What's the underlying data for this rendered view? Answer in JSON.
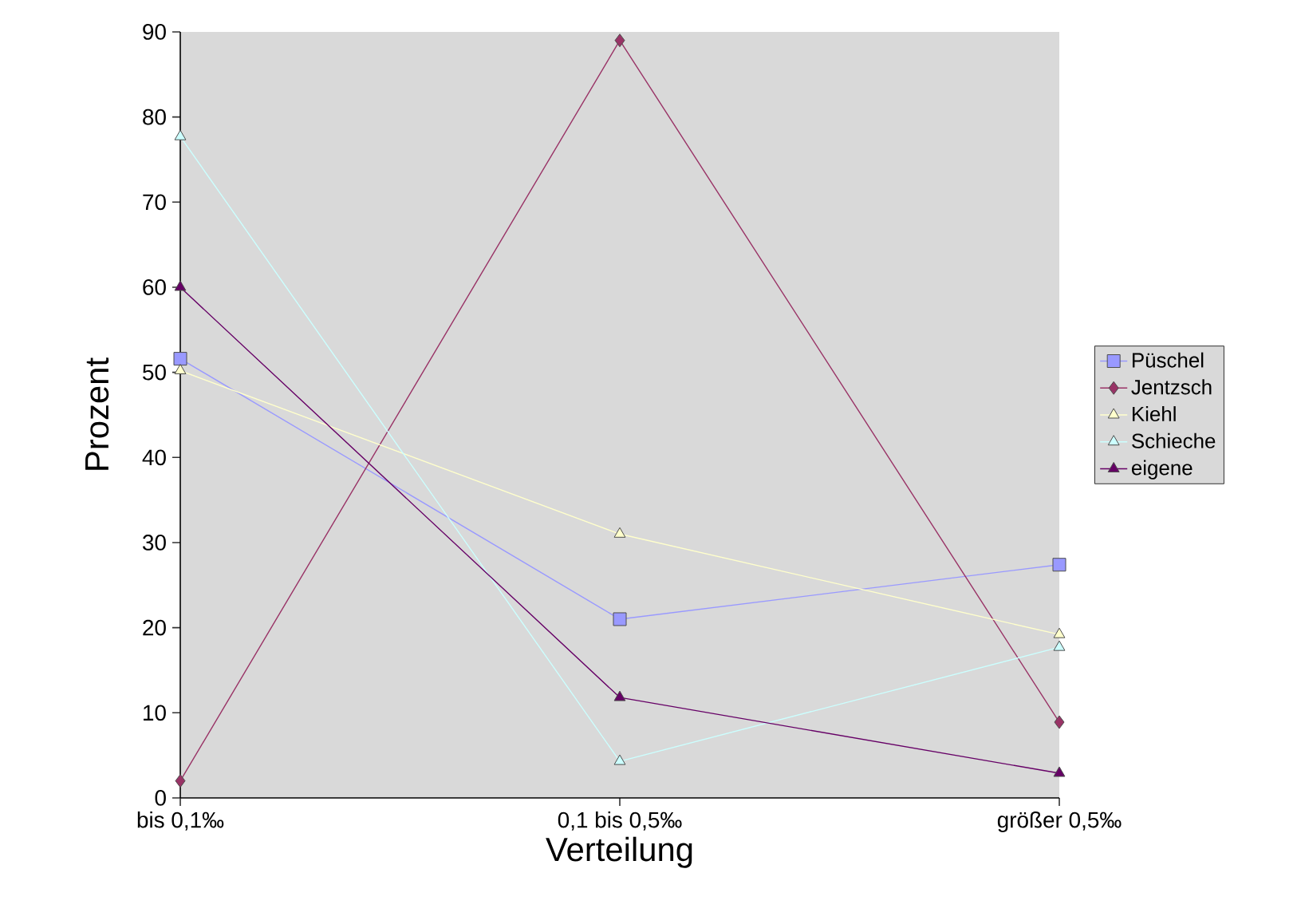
{
  "chart_data": {
    "type": "line",
    "xlabel": "Verteilung",
    "ylabel": "Prozent",
    "categories": [
      "bis 0,1‰",
      "0,1 bis 0,5‰",
      "größer 0,5‰"
    ],
    "ylim": [
      0,
      90
    ],
    "yticks": [
      0,
      10,
      20,
      30,
      40,
      50,
      60,
      70,
      80,
      90
    ],
    "grid": false,
    "legend": "right",
    "line_style": "solid",
    "series": [
      {
        "name": "Püschel",
        "color": "#9999ff",
        "marker": "square",
        "values": [
          51.6,
          21,
          27.4
        ]
      },
      {
        "name": "Jentzsch",
        "color": "#993366",
        "marker": "diamond",
        "values": [
          2,
          89,
          8.9
        ]
      },
      {
        "name": "Kiehl",
        "color": "#ffffcc",
        "marker": "triangle",
        "values": [
          50.2,
          31,
          19.2
        ]
      },
      {
        "name": "Schieche",
        "color": "#ccffff",
        "marker": "triangle",
        "values": [
          77.7,
          4.3,
          17.7
        ]
      },
      {
        "name": "eigene",
        "color": "#660066",
        "marker": "triangle",
        "values": [
          60,
          11.8,
          2.9
        ]
      }
    ]
  }
}
